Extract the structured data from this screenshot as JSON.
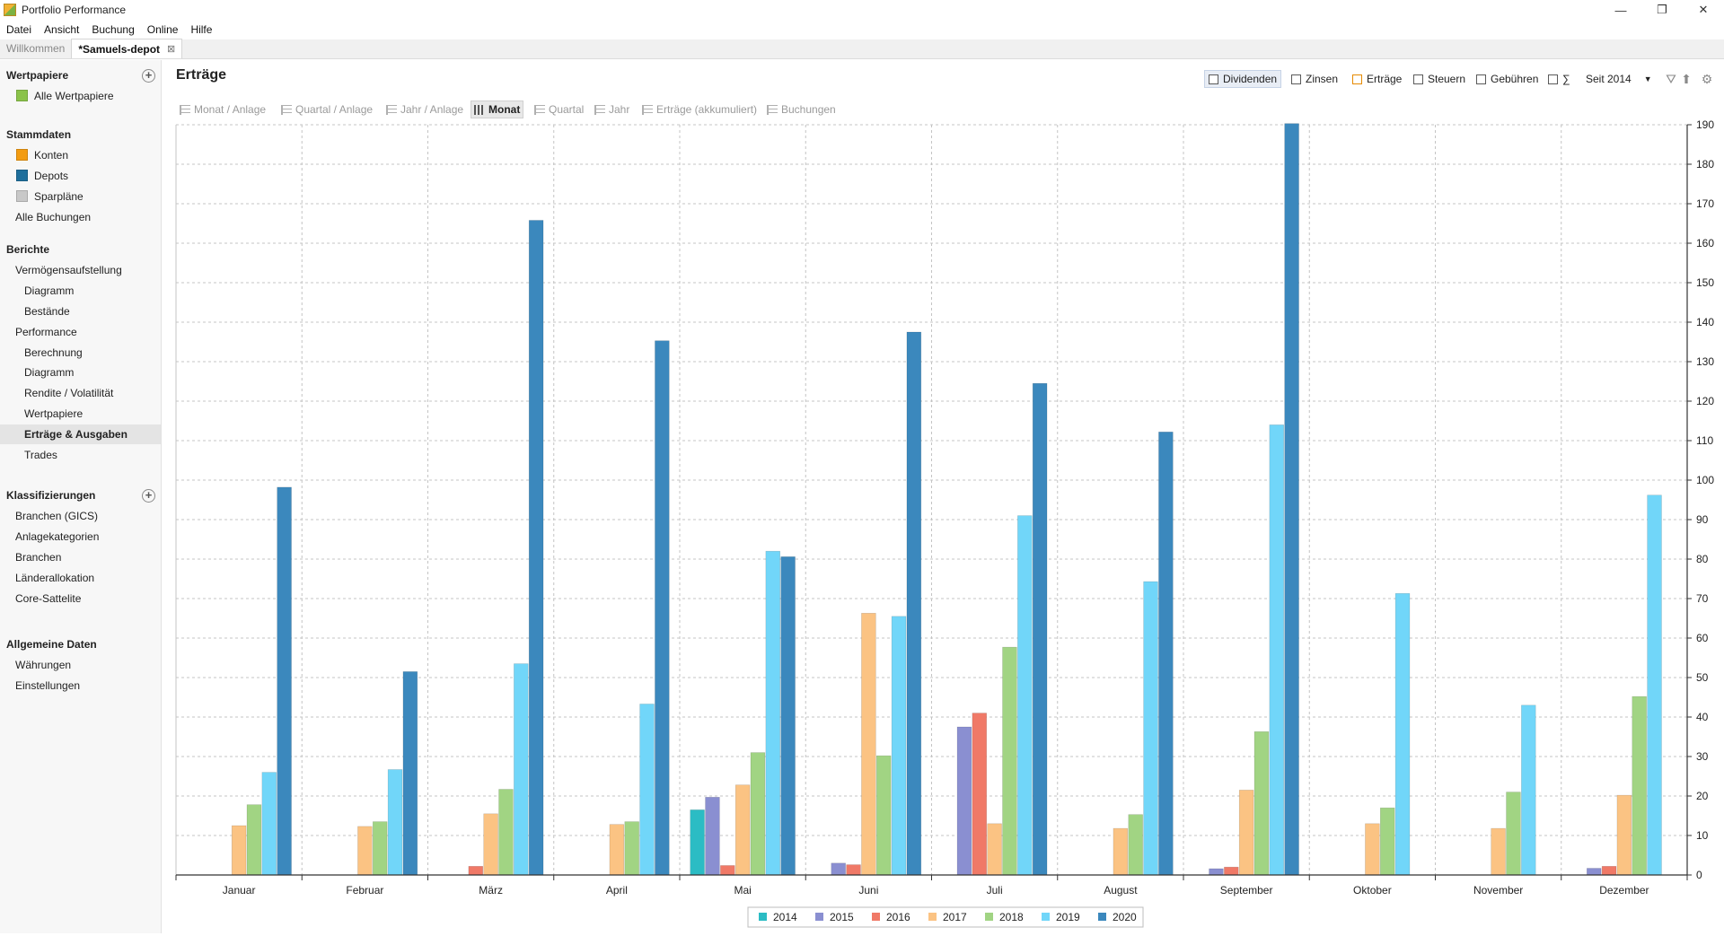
{
  "window": {
    "title": "Portfolio Performance",
    "minimize": "—",
    "maximize": "❐",
    "close": "✕"
  },
  "menu": [
    "Datei",
    "Ansicht",
    "Buchung",
    "Online",
    "Hilfe"
  ],
  "tabs": [
    {
      "label": "Willkommen",
      "active": false
    },
    {
      "label": "*Samuels-depot",
      "active": true,
      "close": "⊠"
    }
  ],
  "sidebar": {
    "sections": [
      {
        "title": "Wertpapiere",
        "add": true,
        "items": [
          {
            "label": "Alle Wertpapiere",
            "color": "#8bc34a",
            "indent": 1
          }
        ]
      },
      {
        "title": "Stammdaten",
        "items": [
          {
            "label": "Konten",
            "color": "#f39c12",
            "indent": 1
          },
          {
            "label": "Depots",
            "color": "#1f6f9c",
            "indent": 1
          },
          {
            "label": "Sparpläne",
            "color": "#c8c8c8",
            "indent": 1
          },
          {
            "label": "Alle Buchungen",
            "indent": 1,
            "plain": true
          }
        ]
      },
      {
        "title": "Berichte",
        "items": [
          {
            "label": "Vermögensaufstellung",
            "indent": 1
          },
          {
            "label": "Diagramm",
            "indent": 2
          },
          {
            "label": "Bestände",
            "indent": 2
          },
          {
            "label": "Performance",
            "indent": 1
          },
          {
            "label": "Berechnung",
            "indent": 2
          },
          {
            "label": "Diagramm",
            "indent": 2
          },
          {
            "label": "Rendite / Volatilität",
            "indent": 2
          },
          {
            "label": "Wertpapiere",
            "indent": 2
          },
          {
            "label": "Erträge & Ausgaben",
            "indent": 2,
            "selected": true
          },
          {
            "label": "Trades",
            "indent": 2
          }
        ]
      },
      {
        "title": "Klassifizierungen",
        "add": true,
        "items": [
          {
            "label": "Branchen (GICS)",
            "indent": 1
          },
          {
            "label": "Anlagekategorien",
            "indent": 1
          },
          {
            "label": "Branchen",
            "indent": 1
          },
          {
            "label": "Länderallokation",
            "indent": 1
          },
          {
            "label": "Core-Sattelite",
            "indent": 1
          }
        ]
      },
      {
        "title": "Allgemeine Daten",
        "items": [
          {
            "label": "Währungen",
            "indent": 1
          },
          {
            "label": "Einstellungen",
            "indent": 1
          }
        ]
      }
    ]
  },
  "main": {
    "title": "Erträge",
    "filters": [
      {
        "label": "Dividenden",
        "checked": true
      },
      {
        "label": "Zinsen",
        "checked": false
      },
      {
        "label": "Erträge",
        "checked": false,
        "accent": "orange"
      },
      {
        "label": "Steuern",
        "checked": false
      },
      {
        "label": "Gebühren",
        "checked": false
      },
      {
        "label": "∑",
        "checked": false
      }
    ],
    "period": "Seit 2014",
    "toolbar": [
      {
        "label": "Monat / Anlage",
        "active": false
      },
      {
        "label": "Quartal / Anlage",
        "active": false
      },
      {
        "label": "Jahr / Anlage",
        "active": false
      },
      {
        "label": "Monat",
        "active": true
      },
      {
        "label": "Quartal",
        "active": false
      },
      {
        "label": "Jahr",
        "active": false
      },
      {
        "label": "Erträge (akkumuliert)",
        "active": false
      },
      {
        "label": "Buchungen",
        "active": false
      }
    ]
  },
  "chart_data": {
    "type": "bar",
    "categories": [
      "Januar",
      "Februar",
      "März",
      "April",
      "Mai",
      "Juni",
      "Juli",
      "August",
      "September",
      "Oktober",
      "November",
      "Dezember"
    ],
    "ylim": [
      0,
      190
    ],
    "yticks": [
      0,
      10,
      20,
      30,
      40,
      50,
      60,
      70,
      80,
      90,
      100,
      110,
      120,
      130,
      140,
      150,
      160,
      170,
      180,
      190
    ],
    "grid": true,
    "y_axis_position": "right",
    "legend_position": "bottom-center",
    "series": [
      {
        "name": "2014",
        "color": "#2bbcc4",
        "values": [
          0,
          0,
          0,
          0,
          16.5,
          0,
          0,
          0,
          0,
          0,
          0,
          0
        ]
      },
      {
        "name": "2015",
        "color": "#8a8fd1",
        "values": [
          0,
          0,
          0,
          0,
          19.7,
          3,
          37.5,
          0,
          1.6,
          0,
          0,
          1.7
        ]
      },
      {
        "name": "2016",
        "color": "#f07967",
        "values": [
          0,
          0,
          2.2,
          0,
          2.4,
          2.6,
          41,
          0,
          2,
          0,
          0,
          2.2
        ]
      },
      {
        "name": "2017",
        "color": "#fbc383",
        "values": [
          12.5,
          12.3,
          15.5,
          12.8,
          22.8,
          66.3,
          13,
          11.8,
          21.5,
          13,
          11.8,
          20.2
        ]
      },
      {
        "name": "2018",
        "color": "#a1d483",
        "values": [
          17.8,
          13.5,
          21.7,
          13.5,
          31,
          30.2,
          57.7,
          15.3,
          36.3,
          17,
          21,
          45.2
        ]
      },
      {
        "name": "2019",
        "color": "#71d6f9",
        "values": [
          26,
          26.7,
          53.5,
          43.3,
          82,
          65.5,
          91,
          74.3,
          114,
          71.3,
          43,
          96.2
        ]
      },
      {
        "name": "2020",
        "color": "#3b88bd",
        "values": [
          98.2,
          51.5,
          165.8,
          135.3,
          80.6,
          137.5,
          124.5,
          112.2,
          190.3,
          0,
          0,
          0
        ]
      }
    ]
  }
}
